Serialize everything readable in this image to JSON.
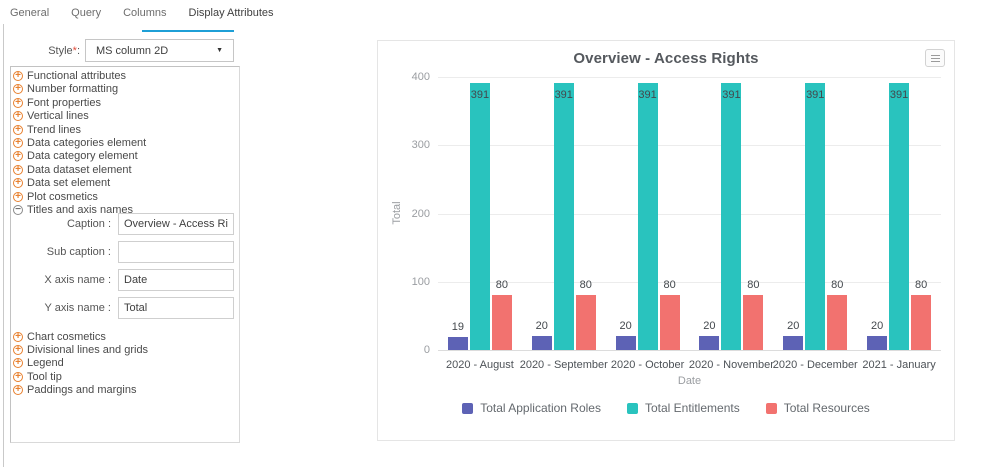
{
  "tabs": [
    {
      "label": "General",
      "active": false
    },
    {
      "label": "Query",
      "active": false
    },
    {
      "label": "Columns",
      "active": false
    },
    {
      "label": "Display Attributes",
      "active": true
    }
  ],
  "style_field": {
    "label": "Style",
    "required": "*",
    "separator": ":",
    "value": "MS column 2D"
  },
  "tree": {
    "items_top": [
      "Functional attributes",
      "Number formatting",
      "Font properties",
      "Vertical lines",
      "Trend lines",
      "Data categories element",
      "Data category element",
      "Data dataset element",
      "Data set element",
      "Plot cosmetics"
    ],
    "expanded_item": "Titles and axis names",
    "fields": [
      {
        "label": "Caption :",
        "value": "Overview - Access Right"
      },
      {
        "label": "Sub caption :",
        "value": ""
      },
      {
        "label": "X axis name :",
        "value": "Date"
      },
      {
        "label": "Y axis name :",
        "value": "Total"
      }
    ],
    "items_bottom": [
      "Chart cosmetics",
      "Divisional lines and grids",
      "Legend",
      "Tool tip",
      "Paddings and margins"
    ]
  },
  "chart_data": {
    "type": "bar",
    "title": "Overview - Access Rights",
    "xlabel": "Date",
    "ylabel": "Total",
    "ylim": [
      0,
      400
    ],
    "yticks": [
      0,
      100,
      200,
      300,
      400
    ],
    "grid": true,
    "legend_position": "bottom",
    "categories": [
      "2020 - August",
      "2020 - September",
      "2020 - October",
      "2020 - November",
      "2020 - December",
      "2021 - January"
    ],
    "series": [
      {
        "name": "Total Application Roles",
        "color": "#5d62b5",
        "values": [
          19,
          20,
          20,
          20,
          20,
          20
        ]
      },
      {
        "name": "Total Entitlements",
        "color": "#29c3be",
        "values": [
          391,
          391,
          391,
          391,
          391,
          391
        ]
      },
      {
        "name": "Total Resources",
        "color": "#f2726f",
        "values": [
          80,
          80,
          80,
          80,
          80,
          80
        ]
      }
    ]
  }
}
